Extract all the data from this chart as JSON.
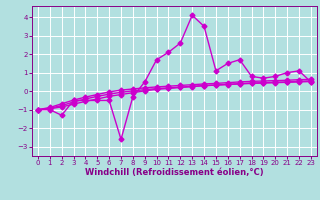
{
  "background_color": "#b2e0e0",
  "grid_color": "#ffffff",
  "line_color": "#cc00cc",
  "x_label": "Windchill (Refroidissement éolien,°C)",
  "xlim": [
    -0.5,
    23.5
  ],
  "ylim": [
    -3.5,
    4.6
  ],
  "yticks": [
    -3,
    -2,
    -1,
    0,
    1,
    2,
    3,
    4
  ],
  "xticks": [
    0,
    1,
    2,
    3,
    4,
    5,
    6,
    7,
    8,
    9,
    10,
    11,
    12,
    13,
    14,
    15,
    16,
    17,
    18,
    19,
    20,
    21,
    22,
    23
  ],
  "line1_x": [
    0,
    1,
    2,
    3,
    4,
    5,
    6,
    7,
    8,
    9,
    10,
    11,
    12,
    13,
    14,
    15,
    16,
    17,
    18,
    19,
    20,
    21,
    22,
    23
  ],
  "line1_y": [
    -1.0,
    -1.0,
    -1.3,
    -0.5,
    -0.5,
    -0.5,
    -0.5,
    -2.6,
    -0.3,
    0.5,
    1.7,
    2.1,
    2.6,
    4.1,
    3.5,
    1.1,
    1.5,
    1.7,
    0.8,
    0.7,
    0.8,
    1.0,
    1.1,
    0.5
  ],
  "line2_x": [
    0,
    1,
    2,
    3,
    4,
    5,
    6,
    7,
    8,
    9,
    10,
    11,
    12,
    13,
    14,
    15,
    16,
    17,
    18,
    19,
    20,
    21,
    22,
    23
  ],
  "line2_y": [
    -1.0,
    -0.95,
    -0.85,
    -0.7,
    -0.55,
    -0.42,
    -0.28,
    -0.18,
    -0.08,
    0.02,
    0.1,
    0.15,
    0.2,
    0.25,
    0.3,
    0.33,
    0.36,
    0.39,
    0.42,
    0.44,
    0.46,
    0.48,
    0.5,
    0.52
  ],
  "line3_x": [
    0,
    1,
    2,
    3,
    4,
    5,
    6,
    7,
    8,
    9,
    10,
    11,
    12,
    13,
    14,
    15,
    16,
    17,
    18,
    19,
    20,
    21,
    22,
    23
  ],
  "line3_y": [
    -1.0,
    -0.92,
    -0.78,
    -0.58,
    -0.42,
    -0.28,
    -0.16,
    -0.06,
    0.02,
    0.08,
    0.14,
    0.18,
    0.22,
    0.26,
    0.3,
    0.33,
    0.37,
    0.41,
    0.44,
    0.46,
    0.48,
    0.5,
    0.53,
    0.56
  ],
  "line4_x": [
    0,
    1,
    2,
    3,
    4,
    5,
    6,
    7,
    8,
    9,
    10,
    11,
    12,
    13,
    14,
    15,
    16,
    17,
    18,
    19,
    20,
    21,
    22,
    23
  ],
  "line4_y": [
    -1.0,
    -0.88,
    -0.68,
    -0.48,
    -0.32,
    -0.18,
    -0.04,
    0.06,
    0.12,
    0.18,
    0.23,
    0.27,
    0.31,
    0.35,
    0.39,
    0.42,
    0.46,
    0.5,
    0.53,
    0.55,
    0.57,
    0.59,
    0.62,
    0.64
  ],
  "marker": "D",
  "markersize": 2.5,
  "linewidth": 1.0,
  "tick_fontsize": 5.0,
  "label_fontsize": 6.0,
  "tick_color": "#880088",
  "spine_color": "#880088"
}
